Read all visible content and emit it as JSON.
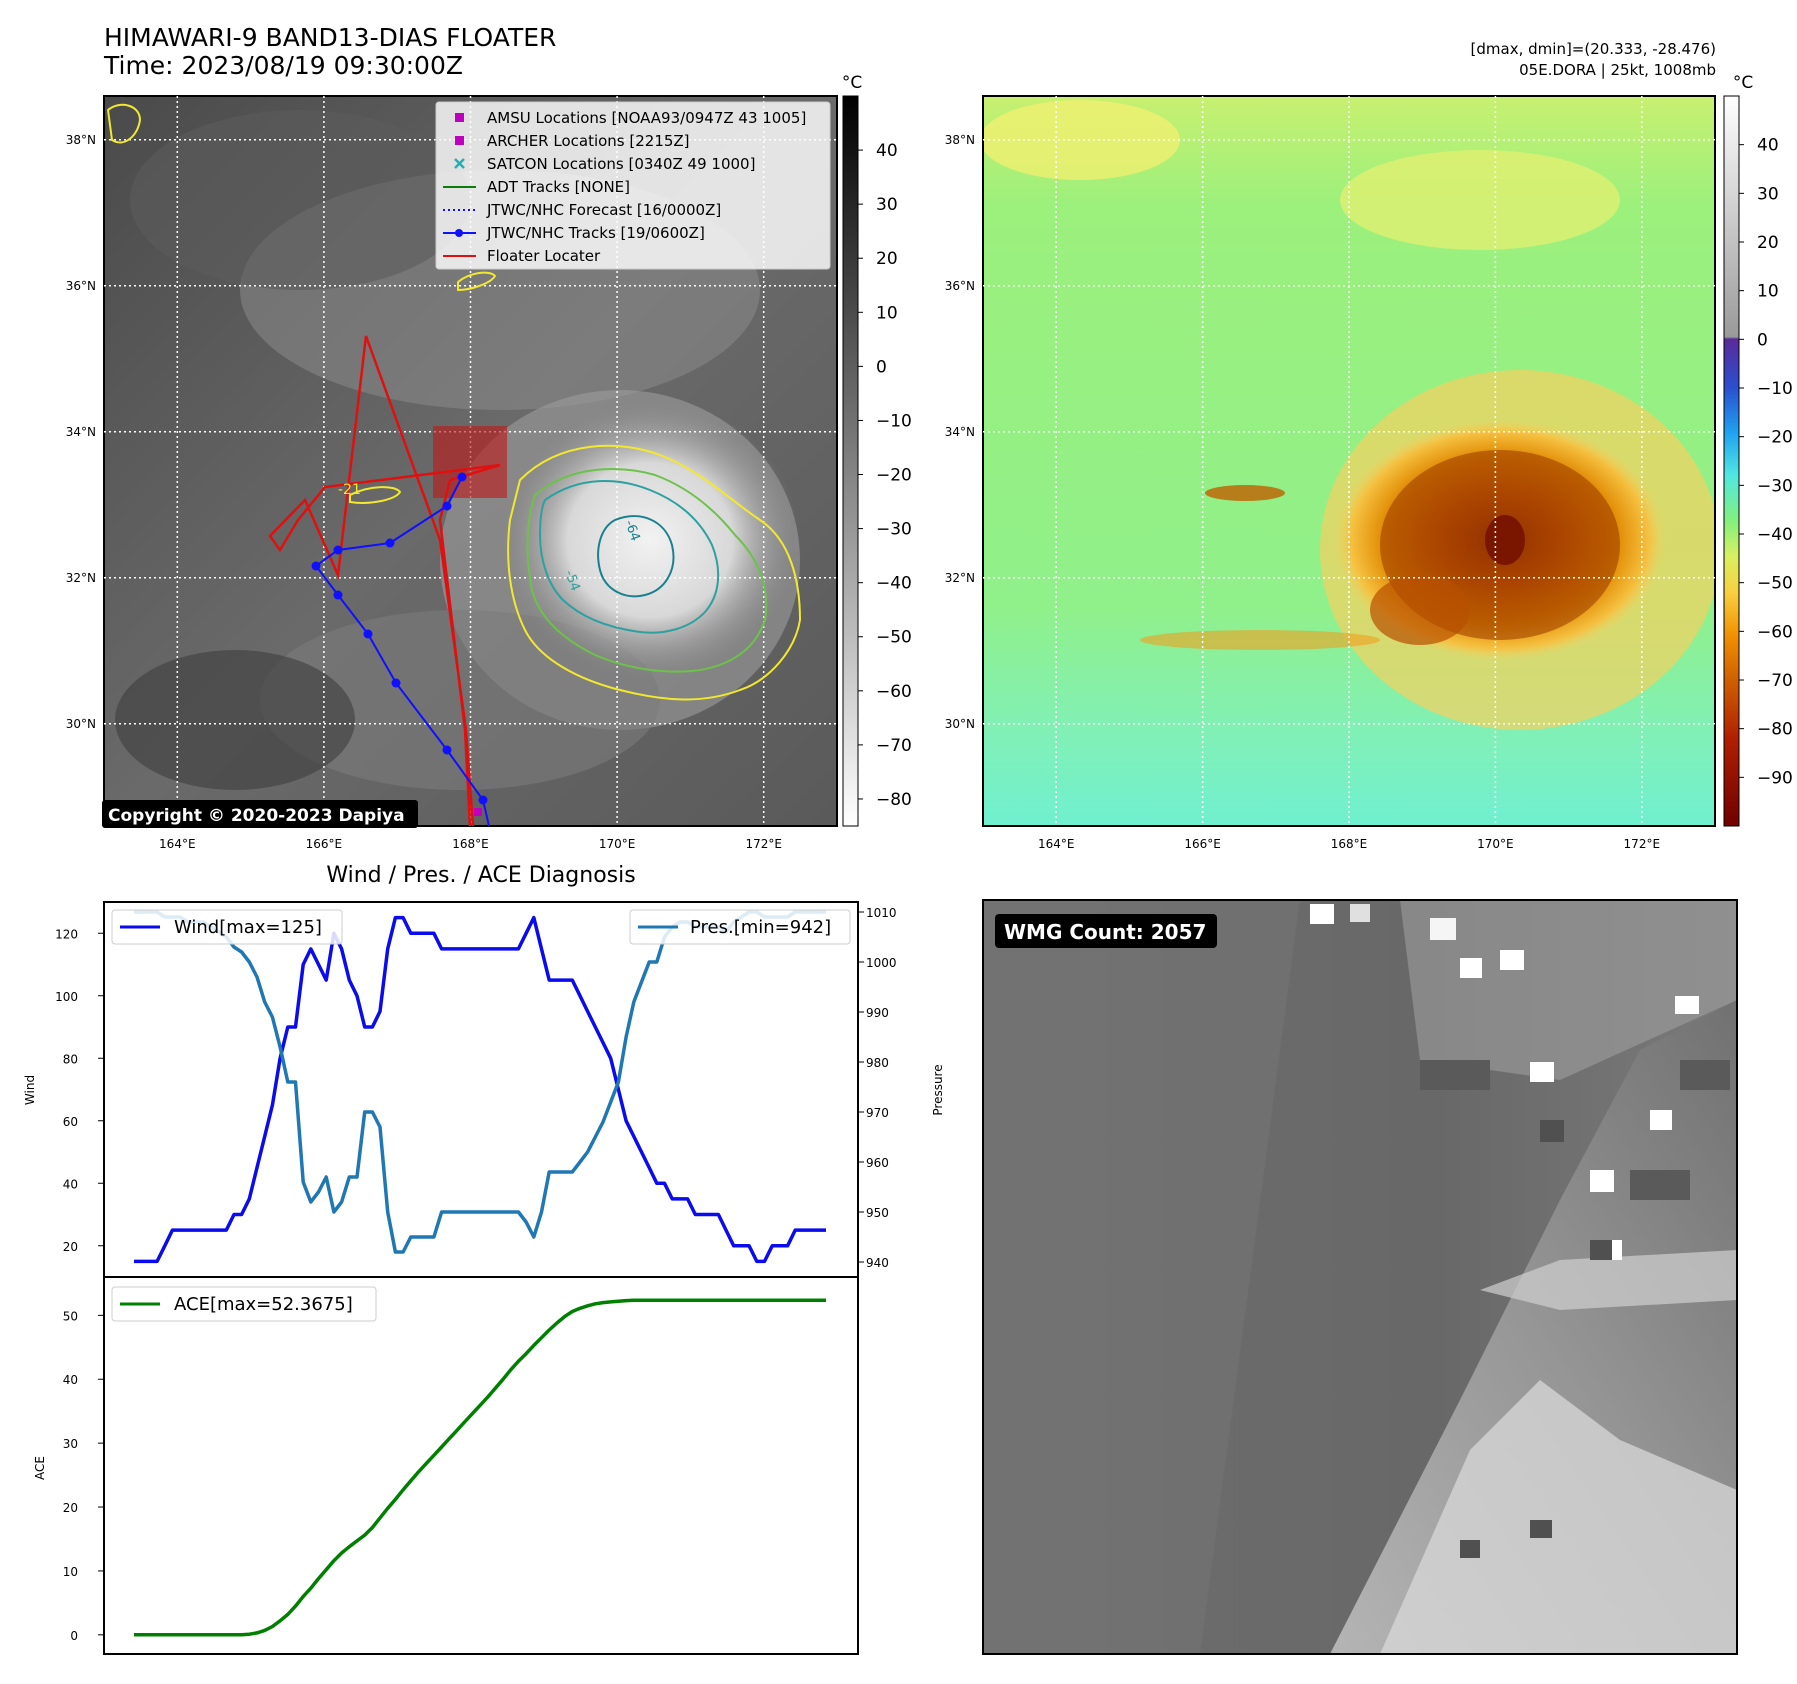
{
  "header": {
    "title_line1": "HIMAWARI-9 BAND13-DIAS FLOATER",
    "title_line2": "Time: 2023/08/19 09:30:00Z",
    "info_line1": "[dmax, dmin]=(20.333, -28.476)",
    "info_line2": "05E.DORA | 25kt, 1008mb",
    "copyright": "Copyright © 2020-2023 Dapiya"
  },
  "map": {
    "lon_ticks": [
      "164°E",
      "166°E",
      "168°E",
      "170°E",
      "172°E"
    ],
    "lat_ticks": [
      "38°N",
      "36°N",
      "34°N",
      "32°N",
      "30°N"
    ],
    "lon_values": [
      164,
      166,
      168,
      170,
      172
    ],
    "lat_values": [
      38,
      36,
      34,
      32,
      30
    ],
    "lon_range": [
      163,
      173
    ],
    "lat_range": [
      28.6,
      38.6
    ],
    "contour_labels": [
      "-21",
      "-64",
      "-54"
    ]
  },
  "legend_ir": [
    {
      "label": "AMSU Locations [NOAA93/0947Z 43 1005]",
      "marker": "square",
      "color": "#c000c0"
    },
    {
      "label": "ARCHER Locations [2215Z]",
      "marker": "square",
      "color": "#c000c0"
    },
    {
      "label": "SATCON Locations [0340Z 49 1000]",
      "marker": "x",
      "color": "#20b0b0"
    },
    {
      "label": "ADT Tracks [NONE]",
      "marker": "line",
      "color": "#0a7d0a"
    },
    {
      "label": "JTWC/NHC Forecast [16/0000Z]",
      "marker": "dotted",
      "color": "#1010ff"
    },
    {
      "label": "JTWC/NHC Tracks [19/0600Z]",
      "marker": "line-dot",
      "color": "#1010ff"
    },
    {
      "label": "Floater Locater",
      "marker": "line",
      "color": "#e01010"
    }
  ],
  "colorbar_ir": {
    "unit": "°C",
    "ticks": [
      "40",
      "30",
      "20",
      "10",
      "0",
      "−10",
      "−20",
      "−30",
      "−40",
      "−50",
      "−60",
      "−70",
      "−80"
    ],
    "range": [
      -85,
      50
    ]
  },
  "colorbar_enh": {
    "unit": "°C",
    "ticks": [
      "40",
      "30",
      "20",
      "10",
      "0",
      "−10",
      "−20",
      "−30",
      "−40",
      "−50",
      "−60",
      "−70",
      "−80",
      "−90"
    ],
    "range": [
      -100,
      50
    ]
  },
  "wmg": {
    "label": "WMG Count: 2057"
  },
  "diag": {
    "title": "Wind / Pres. / ACE Diagnosis"
  },
  "chart_data": [
    {
      "type": "line",
      "title": "Wind / Pres. / ACE Diagnosis",
      "ylabel": "Wind",
      "y2label": "Pressure",
      "ylim": [
        10,
        130
      ],
      "y2lim": [
        937,
        1012
      ],
      "yticks": [
        20,
        40,
        60,
        80,
        100,
        120
      ],
      "y2ticks": [
        940,
        950,
        960,
        970,
        980,
        990,
        1000,
        1010
      ],
      "series": [
        {
          "name": "Wind[max=125]",
          "axis": "left",
          "color": "#0b0bef",
          "values": [
            15,
            15,
            15,
            15,
            20,
            25,
            25,
            25,
            25,
            25,
            25,
            25,
            25,
            30,
            30,
            35,
            45,
            55,
            65,
            80,
            90,
            90,
            110,
            115,
            110,
            105,
            120,
            115,
            105,
            100,
            90,
            90,
            95,
            115,
            125,
            125,
            120,
            120,
            120,
            120,
            115,
            115,
            115,
            115,
            115,
            115,
            115,
            115,
            115,
            115,
            115,
            120,
            125,
            115,
            105,
            105,
            105,
            105,
            100,
            95,
            90,
            85,
            80,
            70,
            60,
            55,
            50,
            45,
            40,
            40,
            35,
            35,
            35,
            30,
            30,
            30,
            30,
            25,
            20,
            20,
            20,
            15,
            15,
            20,
            20,
            20,
            25,
            25,
            25,
            25,
            25
          ]
        },
        {
          "name": "Pres.[min=942]",
          "axis": "right",
          "color": "#1f77b4",
          "values": [
            1010,
            1010,
            1010,
            1010,
            1009,
            1009,
            1009,
            1008,
            1008,
            1008,
            1007,
            1006,
            1005,
            1003,
            1002,
            1000,
            997,
            992,
            989,
            983,
            976,
            976,
            956,
            952,
            954,
            957,
            950,
            952,
            957,
            957,
            970,
            970,
            967,
            950,
            942,
            942,
            945,
            945,
            945,
            945,
            950,
            950,
            950,
            950,
            950,
            950,
            950,
            950,
            950,
            950,
            950,
            948,
            945,
            950,
            958,
            958,
            958,
            958,
            960,
            962,
            965,
            968,
            972,
            976,
            985,
            992,
            996,
            1000,
            1000,
            1005,
            1007,
            1008,
            1008,
            1007,
            1007,
            1007,
            1007,
            1006,
            1008,
            1009,
            1010,
            1010,
            1009,
            1009,
            1009,
            1009,
            1010,
            1010,
            1010,
            1010,
            1010
          ]
        }
      ]
    },
    {
      "type": "line",
      "ylabel": "ACE",
      "ylim": [
        -3,
        56
      ],
      "yticks": [
        0,
        10,
        20,
        30,
        40,
        50
      ],
      "series": [
        {
          "name": "ACE[max=52.3675]",
          "color": "#008000",
          "values": [
            0,
            0,
            0,
            0,
            0,
            0,
            0,
            0,
            0,
            0,
            0,
            0,
            0,
            0,
            0,
            0.1,
            0.3,
            0.7,
            1.3,
            2.2,
            3.2,
            4.5,
            6,
            7.3,
            8.8,
            10.2,
            11.6,
            12.8,
            13.8,
            14.7,
            15.6,
            16.8,
            18.3,
            19.8,
            21.2,
            22.7,
            24.1,
            25.5,
            26.8,
            28.1,
            29.4,
            30.7,
            32,
            33.3,
            34.6,
            35.9,
            37.2,
            38.6,
            40,
            41.5,
            42.8,
            44,
            45.3,
            46.5,
            47.7,
            48.8,
            49.8,
            50.6,
            51.1,
            51.5,
            51.8,
            52,
            52.1,
            52.2,
            52.3,
            52.37,
            52.37,
            52.37,
            52.37,
            52.37,
            52.37,
            52.37,
            52.37,
            52.37,
            52.37,
            52.37,
            52.37,
            52.37,
            52.37,
            52.37,
            52.37,
            52.37,
            52.37,
            52.37,
            52.37,
            52.37,
            52.37,
            52.37,
            52.37,
            52.37,
            52.37
          ]
        }
      ]
    }
  ]
}
